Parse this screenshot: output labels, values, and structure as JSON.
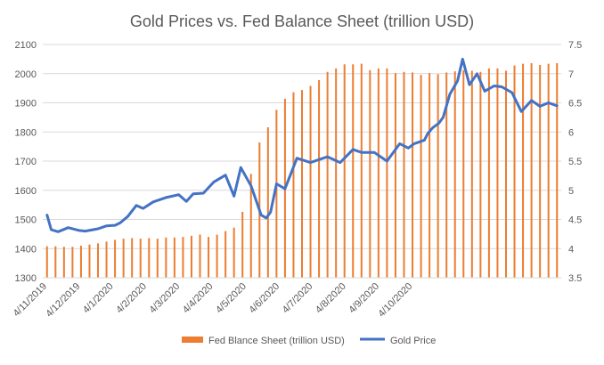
{
  "chart_data": {
    "type": "bar-line-combo",
    "title": "Gold Prices vs. Fed Balance Sheet (trillion USD)",
    "xlabel": "",
    "ylabel": "",
    "ylabel_right": "",
    "ylim": [
      1300,
      2100
    ],
    "ylim_right": [
      3.5,
      7.5
    ],
    "yticks": [
      "1300",
      "1400",
      "1500",
      "1600",
      "1700",
      "1800",
      "1900",
      "2000",
      "2100"
    ],
    "yticks_right": [
      "3.5",
      "4",
      "4.5",
      "5",
      "5.5",
      "6",
      "6.5",
      "7",
      "7.5"
    ],
    "grid": true,
    "legend": "bottom",
    "x_tick_labels": [
      "4/11/2019",
      "4/12/2019",
      "4/1/2020",
      "4/2/2020",
      "4/3/2020",
      "4/4/2020",
      "4/5/2020",
      "4/6/2020",
      "4/7/2020",
      "4/8/2020",
      "4/9/2020",
      "4/10/2020"
    ],
    "series": [
      {
        "name": "Fed Blance Sheet (trillion USD)",
        "kind": "bar",
        "color": "#ED7D31",
        "values": [
          4.04,
          4.04,
          4.03,
          4.03,
          4.05,
          4.07,
          4.09,
          4.12,
          4.15,
          4.17,
          4.18,
          4.17,
          4.18,
          4.17,
          4.19,
          4.19,
          4.2,
          4.22,
          4.24,
          4.2,
          4.24,
          4.3,
          4.36,
          4.63,
          5.28,
          5.82,
          6.08,
          6.38,
          6.57,
          6.68,
          6.72,
          6.79,
          6.89,
          7.03,
          7.09,
          7.16,
          7.16,
          7.17,
          7.06,
          7.09,
          7.09,
          7.01,
          7.03,
          7.02,
          6.98,
          7.01,
          6.99,
          7.02,
          7.04,
          7.06,
          7.05,
          7.03,
          7.09,
          7.09,
          7.05,
          7.14,
          7.17,
          7.18,
          7.15,
          7.17,
          7.18
        ]
      },
      {
        "name": "Gold Price",
        "kind": "line",
        "color": "#4472C4",
        "t": [
          0,
          0.5,
          1.3,
          2.5,
          3.8,
          4.5,
          6,
          7,
          8,
          8.6,
          9.5,
          10.5,
          11.3,
          12.5,
          14,
          15.5,
          16.4,
          17.2,
          18.4,
          19.6,
          21,
          22,
          22.8,
          24,
          25.2,
          25.8,
          26.3,
          27,
          28,
          29.4,
          31,
          33,
          34.5,
          36,
          37,
          38.5,
          40,
          41.5,
          42.5,
          43.2,
          44.4,
          44.8,
          45.4,
          46.1,
          46.6,
          47.4,
          48.3,
          48.9,
          49.7,
          50.6,
          51.5,
          52.6,
          53.5,
          54.7,
          55.8,
          57,
          58,
          59,
          60
        ],
        "values": [
          1515,
          1465,
          1458,
          1472,
          1462,
          1460,
          1468,
          1478,
          1480,
          1488,
          1510,
          1548,
          1538,
          1560,
          1575,
          1585,
          1562,
          1588,
          1590,
          1628,
          1652,
          1580,
          1678,
          1615,
          1515,
          1505,
          1525,
          1622,
          1605,
          1710,
          1695,
          1715,
          1695,
          1740,
          1730,
          1730,
          1700,
          1760,
          1745,
          1760,
          1772,
          1795,
          1815,
          1830,
          1850,
          1930,
          1975,
          2050,
          1962,
          2000,
          1940,
          1958,
          1955,
          1935,
          1870,
          1908,
          1888,
          1900,
          1890
        ]
      }
    ]
  }
}
